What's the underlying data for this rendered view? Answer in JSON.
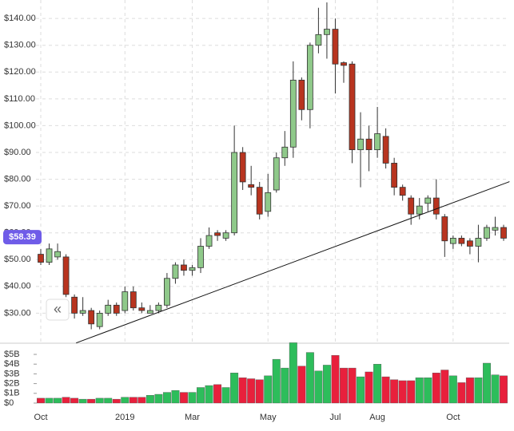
{
  "chart_data": {
    "type": "candlestick",
    "categories": [
      "Oct",
      null,
      null,
      null,
      null,
      null,
      null,
      null,
      null,
      null,
      "2019",
      null,
      null,
      null,
      null,
      null,
      null,
      null,
      "Mar",
      null,
      null,
      null,
      null,
      null,
      null,
      null,
      null,
      "May",
      null,
      null,
      null,
      null,
      null,
      null,
      null,
      "Jul",
      null,
      null,
      null,
      null,
      "Aug",
      null,
      null,
      null,
      null,
      null,
      null,
      null,
      null,
      "Oct",
      null,
      null,
      null,
      null,
      null,
      null
    ],
    "open": [
      52,
      49,
      51,
      51,
      36,
      30,
      31,
      25,
      30,
      33,
      31,
      38,
      32,
      30,
      31,
      33,
      43,
      48,
      46,
      47,
      55,
      60,
      58,
      60,
      90,
      78,
      77,
      68,
      76,
      88,
      92,
      117,
      106,
      130,
      134,
      136,
      123.5,
      123,
      91,
      95,
      91,
      96,
      86,
      77,
      73,
      67,
      71,
      73,
      66,
      56,
      58,
      57,
      55,
      58,
      61,
      62
    ],
    "high": [
      54,
      56,
      56,
      52,
      37,
      36,
      32,
      31,
      35,
      34,
      40,
      40,
      34,
      33,
      34,
      45,
      49,
      50,
      48,
      58,
      62,
      61,
      61,
      100,
      92,
      85,
      79,
      82,
      90,
      98,
      124,
      118,
      131,
      144,
      146,
      140,
      124,
      124,
      105,
      100,
      107,
      99,
      88,
      78,
      74,
      73,
      74,
      80,
      67,
      59,
      59,
      58,
      63,
      63,
      66,
      63
    ],
    "low": [
      48,
      48,
      50,
      36,
      28,
      29,
      24,
      24,
      29,
      29,
      30,
      31,
      30,
      30,
      30,
      32,
      41,
      44,
      44,
      45,
      54,
      57,
      57,
      59,
      76,
      74,
      65,
      66,
      75,
      85,
      88,
      102,
      99,
      127,
      125,
      112,
      116,
      86,
      77,
      83,
      88,
      84,
      74,
      72,
      63,
      65,
      68,
      65,
      51,
      54,
      55,
      52,
      49,
      57,
      59,
      57
    ],
    "close": [
      49,
      54,
      53,
      37,
      30,
      31,
      26,
      30,
      33,
      30,
      38,
      32,
      31,
      31,
      33,
      43,
      48,
      46,
      47,
      55,
      59,
      59,
      60,
      90,
      79,
      77,
      67,
      75,
      88,
      92,
      117,
      106,
      130,
      134,
      136,
      123,
      122.5,
      91,
      95,
      91,
      97,
      86,
      77,
      74,
      67,
      70,
      73,
      67,
      57,
      58,
      56,
      55,
      58,
      62,
      62,
      58
    ],
    "up_color": "#8fc98a",
    "down_color": "#b8341f",
    "ylim": [
      18.8,
      146.9
    ],
    "yticks": [
      {
        "value": 30,
        "label": "$30.00"
      },
      {
        "value": 40,
        "label": "$40.00"
      },
      {
        "value": 50,
        "label": "$50.00"
      },
      {
        "value": 60,
        "label": "$60.00"
      },
      {
        "value": 70,
        "label": "$70.00"
      },
      {
        "value": 80,
        "label": "$80.00"
      },
      {
        "value": 90,
        "label": "$90.00"
      },
      {
        "value": 100,
        "label": "$100.00"
      },
      {
        "value": 110,
        "label": "$110.00"
      },
      {
        "value": 120,
        "label": "$120.00"
      },
      {
        "value": 130,
        "label": "$130.00"
      },
      {
        "value": 140,
        "label": "$140.00"
      }
    ],
    "grid": true,
    "last_price": {
      "value": 58.39,
      "label": "$58.39"
    },
    "trendline": {
      "x": [
        4.2,
        55.7
      ],
      "values": [
        18.9,
        79.1
      ]
    },
    "volume": {
      "values": [
        0.5,
        0.5,
        0.5,
        0.6,
        0.5,
        0.4,
        0.4,
        0.5,
        0.5,
        0.4,
        0.6,
        0.6,
        0.6,
        0.8,
        0.9,
        1.1,
        1.3,
        1.1,
        1.1,
        1.6,
        1.8,
        1.9,
        1.6,
        3.1,
        2.6,
        2.5,
        2.4,
        2.8,
        4.5,
        3.6,
        6.2,
        3.8,
        5.2,
        3.3,
        3.9,
        4.9,
        3.6,
        3.6,
        2.7,
        3.2,
        4.0,
        2.7,
        2.4,
        2.3,
        2.3,
        2.6,
        2.6,
        3.1,
        3.4,
        2.8,
        2.1,
        2.6,
        2.6,
        4.1,
        2.9,
        2.8
      ],
      "up_color": "#2dbd5b",
      "down_color": "#e8203c",
      "ylim": [
        0,
        6.15
      ],
      "yticks": [
        {
          "value": 0,
          "label": "$0"
        },
        {
          "value": 1,
          "label": "$1B"
        },
        {
          "value": 2,
          "label": "$2B"
        },
        {
          "value": 3,
          "label": "$3B"
        },
        {
          "value": 4,
          "label": "$4B"
        },
        {
          "value": 5,
          "label": "$5B"
        }
      ]
    }
  }
}
